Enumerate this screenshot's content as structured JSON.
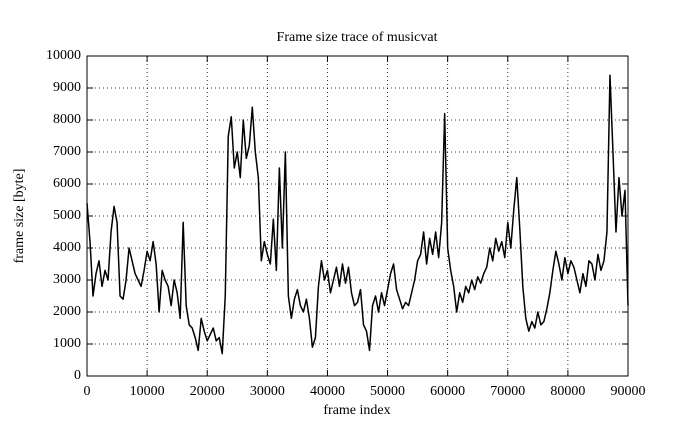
{
  "chart_data": {
    "type": "line",
    "title": "Frame size trace of musicvat",
    "x_label": "frame index",
    "y_label": "frame size [byte]",
    "x": [
      0,
      500,
      1000,
      1500,
      2000,
      2500,
      3000,
      3500,
      4000,
      4500,
      5000,
      5500,
      6000,
      6500,
      7000,
      7500,
      8000,
      8500,
      9000,
      9500,
      10000,
      10500,
      11000,
      11500,
      12000,
      12500,
      13000,
      13500,
      14000,
      14500,
      15000,
      15500,
      16000,
      16500,
      17000,
      17500,
      18000,
      18500,
      19000,
      19500,
      20000,
      20500,
      21000,
      21500,
      22000,
      22500,
      23000,
      23500,
      24000,
      24500,
      25000,
      25500,
      26000,
      26500,
      27000,
      27500,
      28000,
      28500,
      29000,
      29500,
      30000,
      30500,
      31000,
      31500,
      32000,
      32500,
      33000,
      33500,
      34000,
      34500,
      35000,
      35500,
      36000,
      36500,
      37000,
      37500,
      38000,
      38500,
      39000,
      39500,
      40000,
      40500,
      41000,
      41500,
      42000,
      42500,
      43000,
      43500,
      44000,
      44500,
      45000,
      45500,
      46000,
      46500,
      47000,
      47500,
      48000,
      48500,
      49000,
      49500,
      50000,
      50500,
      51000,
      51500,
      52000,
      52500,
      53000,
      53500,
      54000,
      54500,
      55000,
      55500,
      56000,
      56500,
      57000,
      57500,
      58000,
      58500,
      59000,
      59500,
      60000,
      60500,
      61000,
      61500,
      62000,
      62500,
      63000,
      63500,
      64000,
      64500,
      65000,
      65500,
      66000,
      66500,
      67000,
      67500,
      68000,
      68500,
      69000,
      69500,
      70000,
      70500,
      71000,
      71500,
      72000,
      72500,
      73000,
      73500,
      74000,
      74500,
      75000,
      75500,
      76000,
      76500,
      77000,
      77500,
      78000,
      78500,
      79000,
      79500,
      80000,
      80500,
      81000,
      81500,
      82000,
      82500,
      83000,
      83500,
      84000,
      84500,
      85000,
      85500,
      86000,
      86500,
      87000,
      87500,
      88000,
      88500,
      89000,
      89500,
      90000
    ],
    "series": [
      {
        "color": "#000000",
        "values": [
          5400,
          4200,
          2500,
          3200,
          3600,
          2800,
          3300,
          3000,
          4500,
          5300,
          4800,
          2500,
          2400,
          3000,
          4000,
          3600,
          3200,
          3000,
          2800,
          3300,
          3900,
          3600,
          4200,
          3500,
          2000,
          3300,
          3000,
          2800,
          2200,
          3000,
          2600,
          1800,
          4800,
          2200,
          1600,
          1500,
          1200,
          800,
          1800,
          1400,
          1100,
          1300,
          1500,
          1100,
          1200,
          700,
          2500,
          7500,
          8100,
          6500,
          7000,
          6200,
          8000,
          6800,
          7200,
          8400,
          7000,
          6200,
          3600,
          4200,
          3800,
          3500,
          4900,
          3300,
          6500,
          4000,
          7000,
          2500,
          1800,
          2400,
          2700,
          2200,
          2000,
          2400,
          1800,
          900,
          1200,
          2800,
          3600,
          3000,
          3300,
          2600,
          3000,
          3400,
          2800,
          3500,
          2900,
          3400,
          2600,
          2200,
          2300,
          2700,
          1600,
          1400,
          800,
          2200,
          2500,
          2000,
          2600,
          2200,
          2700,
          3200,
          3500,
          2700,
          2400,
          2100,
          2300,
          2200,
          2600,
          3000,
          3600,
          3800,
          4500,
          3500,
          4300,
          3800,
          4500,
          3700,
          4800,
          8200,
          4000,
          3300,
          2800,
          2000,
          2600,
          2300,
          2800,
          2600,
          3000,
          2700,
          3100,
          2900,
          3200,
          3400,
          4000,
          3600,
          4300,
          3900,
          4200,
          3700,
          4800,
          4000,
          5200,
          6200,
          4600,
          2800,
          1800,
          1400,
          1700,
          1500,
          2000,
          1600,
          1700,
          2100,
          2600,
          3300,
          3900,
          3500,
          3000,
          3700,
          3200,
          3600,
          3400,
          3000,
          2600,
          3200,
          2800,
          3600,
          3500,
          3000,
          3800,
          3300,
          3600,
          4500,
          9400,
          7000,
          4500,
          6200,
          5000,
          5800,
          2200
        ]
      }
    ],
    "xlim": [
      0,
      90000
    ],
    "xticks": [
      0,
      10000,
      20000,
      30000,
      40000,
      50000,
      60000,
      70000,
      80000,
      90000
    ],
    "ylim": [
      0,
      10000
    ],
    "yticks": [
      0,
      1000,
      2000,
      3000,
      4000,
      5000,
      6000,
      7000,
      8000,
      9000,
      10000
    ],
    "grid": true
  }
}
